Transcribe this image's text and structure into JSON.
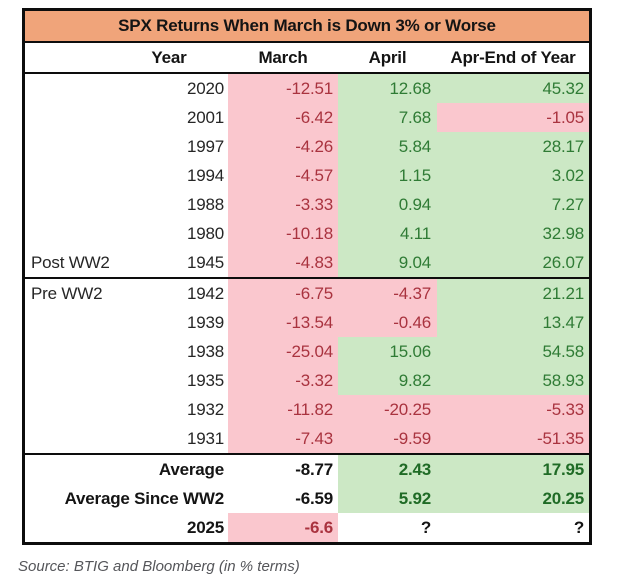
{
  "title": "SPX Returns When March is Down 3% or Worse",
  "source": "Source: BTIG and Bloomberg (in % terms)",
  "columns": {
    "year": "Year",
    "march": "March",
    "april": "April",
    "apr_end": "Apr-End of Year"
  },
  "colors": {
    "title_bg": "#F0A47A",
    "negative_bg": "#FAC7CE",
    "negative_text": "#A9333F",
    "positive_bg": "#CCE8C5",
    "positive_text": "#2F7B35",
    "border": "#0d0d0d"
  },
  "chart_data": {
    "type": "table",
    "title": "SPX Returns When March is Down 3% or Worse",
    "columns": [
      "Year",
      "March",
      "April",
      "Apr-End of Year"
    ],
    "rows": [
      [
        "2020",
        -12.51,
        12.68,
        45.32
      ],
      [
        "2001",
        -6.42,
        7.68,
        -1.05
      ],
      [
        "1997",
        -4.26,
        5.84,
        28.17
      ],
      [
        "1994",
        -4.57,
        1.15,
        3.02
      ],
      [
        "1988",
        -3.33,
        0.94,
        7.27
      ],
      [
        "1980",
        -10.18,
        4.11,
        32.98
      ],
      [
        "1945",
        -4.83,
        9.04,
        26.07
      ],
      [
        "1942",
        -6.75,
        -4.37,
        21.21
      ],
      [
        "1939",
        -13.54,
        -0.46,
        13.47
      ],
      [
        "1938",
        -25.04,
        15.06,
        54.58
      ],
      [
        "1935",
        -3.32,
        9.82,
        58.93
      ],
      [
        "1932",
        -11.82,
        -20.25,
        -5.33
      ],
      [
        "1931",
        -7.43,
        -9.59,
        -51.35
      ]
    ],
    "summary_rows": [
      [
        "Average",
        -8.77,
        2.43,
        17.95
      ],
      [
        "Average Since WW2",
        -6.59,
        5.92,
        20.25
      ],
      [
        "2025",
        -6.6,
        "?",
        "?"
      ]
    ]
  },
  "rows": [
    {
      "label": "",
      "year": "2020",
      "bold": false,
      "section": "",
      "march": {
        "v": "-12.51",
        "s": "neg"
      },
      "april": {
        "v": "12.68",
        "s": "pos"
      },
      "apr_end": {
        "v": "45.32",
        "s": "pos"
      }
    },
    {
      "label": "",
      "year": "2001",
      "bold": false,
      "section": "",
      "march": {
        "v": "-6.42",
        "s": "neg"
      },
      "april": {
        "v": "7.68",
        "s": "pos"
      },
      "apr_end": {
        "v": "-1.05",
        "s": "neg"
      }
    },
    {
      "label": "",
      "year": "1997",
      "bold": false,
      "section": "",
      "march": {
        "v": "-4.26",
        "s": "neg"
      },
      "april": {
        "v": "5.84",
        "s": "pos"
      },
      "apr_end": {
        "v": "28.17",
        "s": "pos"
      }
    },
    {
      "label": "",
      "year": "1994",
      "bold": false,
      "section": "",
      "march": {
        "v": "-4.57",
        "s": "neg"
      },
      "april": {
        "v": "1.15",
        "s": "pos"
      },
      "apr_end": {
        "v": "3.02",
        "s": "pos"
      }
    },
    {
      "label": "",
      "year": "1988",
      "bold": false,
      "section": "",
      "march": {
        "v": "-3.33",
        "s": "neg"
      },
      "april": {
        "v": "0.94",
        "s": "pos"
      },
      "apr_end": {
        "v": "7.27",
        "s": "pos"
      }
    },
    {
      "label": "",
      "year": "1980",
      "bold": false,
      "section": "",
      "march": {
        "v": "-10.18",
        "s": "neg"
      },
      "april": {
        "v": "4.11",
        "s": "pos"
      },
      "apr_end": {
        "v": "32.98",
        "s": "pos"
      }
    },
    {
      "label": "Post WW2",
      "year": "1945",
      "bold": false,
      "section": "end",
      "march": {
        "v": "-4.83",
        "s": "neg"
      },
      "april": {
        "v": "9.04",
        "s": "pos"
      },
      "apr_end": {
        "v": "26.07",
        "s": "pos"
      }
    },
    {
      "label": "Pre WW2",
      "year": "1942",
      "bold": false,
      "section": "",
      "march": {
        "v": "-6.75",
        "s": "neg"
      },
      "april": {
        "v": "-4.37",
        "s": "neg"
      },
      "apr_end": {
        "v": "21.21",
        "s": "pos"
      }
    },
    {
      "label": "",
      "year": "1939",
      "bold": false,
      "section": "",
      "march": {
        "v": "-13.54",
        "s": "neg"
      },
      "april": {
        "v": "-0.46",
        "s": "neg"
      },
      "apr_end": {
        "v": "13.47",
        "s": "pos"
      }
    },
    {
      "label": "",
      "year": "1938",
      "bold": false,
      "section": "",
      "march": {
        "v": "-25.04",
        "s": "neg"
      },
      "april": {
        "v": "15.06",
        "s": "pos"
      },
      "apr_end": {
        "v": "54.58",
        "s": "pos"
      }
    },
    {
      "label": "",
      "year": "1935",
      "bold": false,
      "section": "",
      "march": {
        "v": "-3.32",
        "s": "neg"
      },
      "april": {
        "v": "9.82",
        "s": "pos"
      },
      "apr_end": {
        "v": "58.93",
        "s": "pos"
      }
    },
    {
      "label": "",
      "year": "1932",
      "bold": false,
      "section": "",
      "march": {
        "v": "-11.82",
        "s": "neg"
      },
      "april": {
        "v": "-20.25",
        "s": "neg"
      },
      "apr_end": {
        "v": "-5.33",
        "s": "neg"
      }
    },
    {
      "label": "",
      "year": "1931",
      "bold": false,
      "section": "",
      "march": {
        "v": "-7.43",
        "s": "neg"
      },
      "april": {
        "v": "-9.59",
        "s": "neg"
      },
      "apr_end": {
        "v": "-51.35",
        "s": "neg"
      }
    },
    {
      "label": "",
      "year": "Average",
      "bold": true,
      "section": "start",
      "march": {
        "v": "-8.77",
        "s": "plain-bold"
      },
      "april": {
        "v": "2.43",
        "s": "pos-bold"
      },
      "apr_end": {
        "v": "17.95",
        "s": "pos-bold"
      }
    },
    {
      "label": "",
      "year": "Average Since WW2",
      "bold": true,
      "section": "",
      "march": {
        "v": "-6.59",
        "s": "plain-bold"
      },
      "april": {
        "v": "5.92",
        "s": "pos-bold"
      },
      "apr_end": {
        "v": "20.25",
        "s": "pos-bold"
      }
    },
    {
      "label": "",
      "year": "2025",
      "bold": true,
      "section": "",
      "march": {
        "v": "-6.6",
        "s": "neg-bold"
      },
      "april": {
        "v": "?",
        "s": "plain-bold"
      },
      "apr_end": {
        "v": "?",
        "s": "plain-bold"
      }
    }
  ]
}
